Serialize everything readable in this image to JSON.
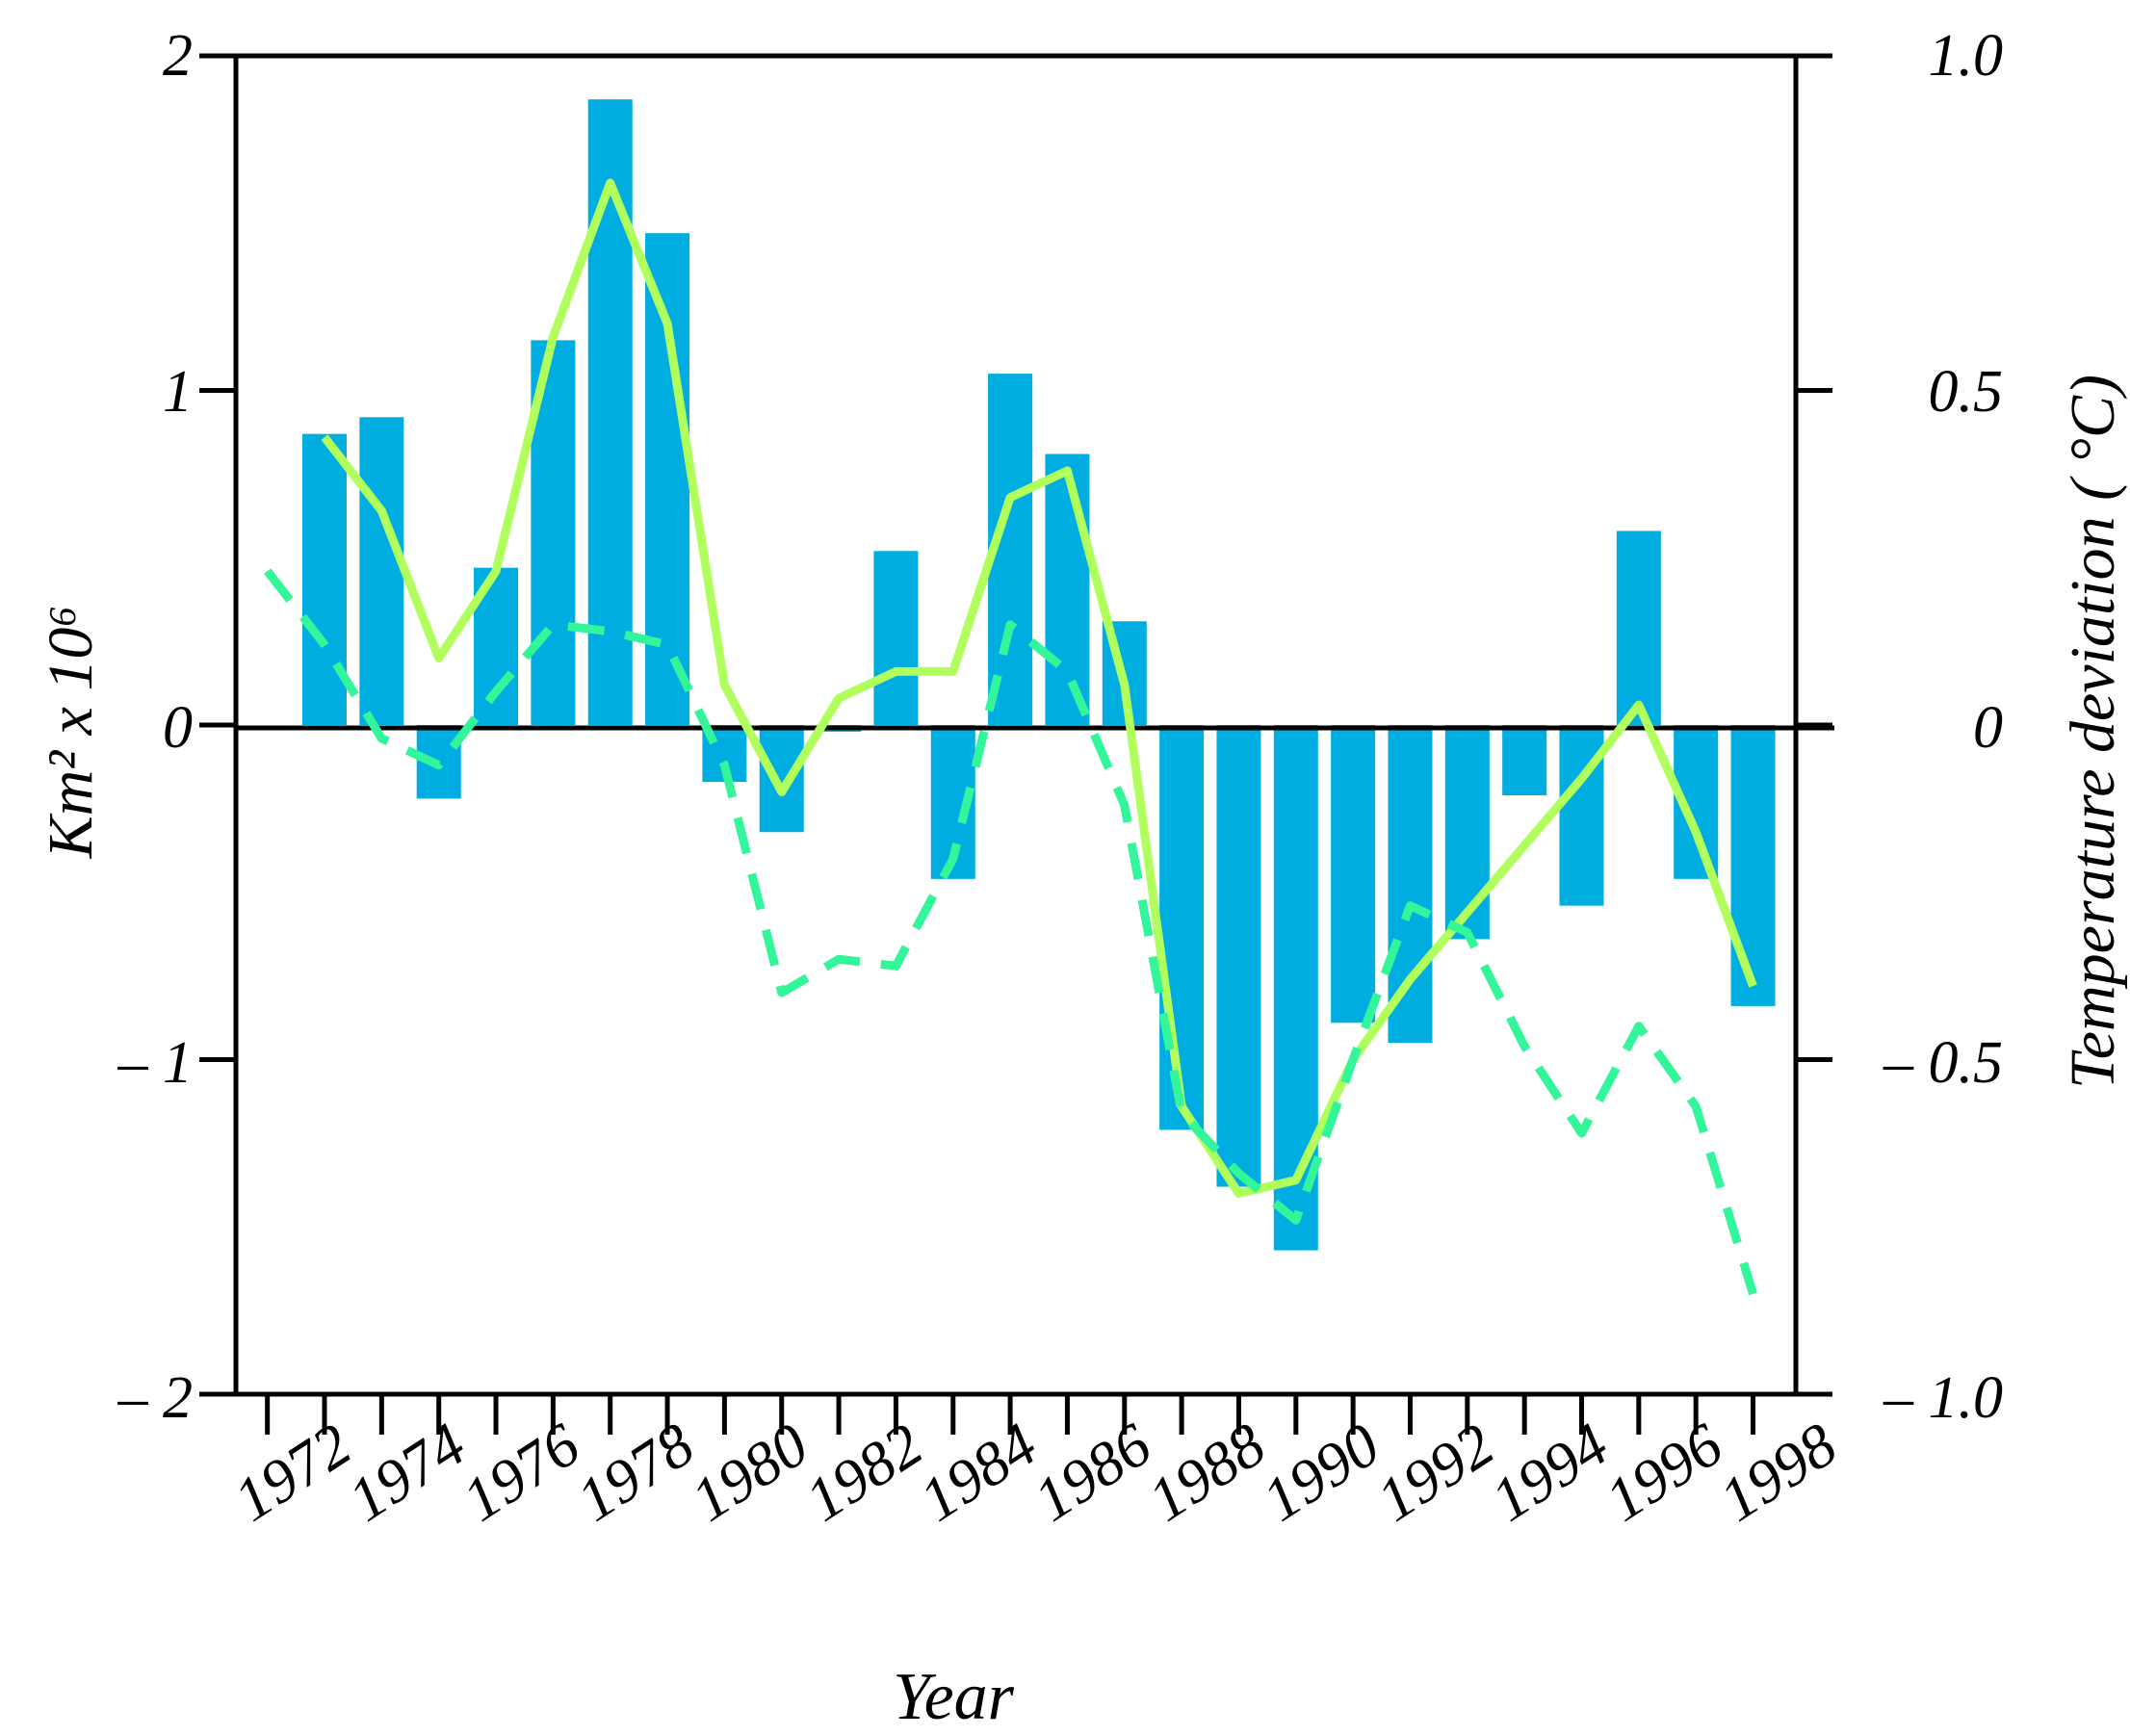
{
  "chart_data": {
    "type": "bar",
    "xlabel": "Year",
    "ylabel": "Km² x 10⁶",
    "y2label": "Temperature deviation ( °C)",
    "ylim": [
      -2,
      2
    ],
    "y2lim": [
      -1.0,
      1.0
    ],
    "y_ticks": [
      "2",
      "1",
      "0",
      "– 1",
      "– 2"
    ],
    "y2_ticks": [
      "1.0",
      "0.5",
      "0",
      "– 0.5",
      "– 1.0"
    ],
    "x_tick_labels": [
      "1972",
      "1974",
      "1976",
      "1978",
      "1980",
      "1982",
      "1984",
      "1986",
      "1988",
      "1990",
      "1992",
      "1994",
      "1996",
      "1998"
    ],
    "bars": {
      "years": [
        1972,
        1973,
        1974,
        1975,
        1976,
        1977,
        1978,
        1979,
        1980,
        1981,
        1982,
        1983,
        1984,
        1985,
        1986,
        1987,
        1988,
        1989,
        1990,
        1991,
        1992,
        1993,
        1994,
        1995,
        1996,
        1997
      ],
      "values": [
        0.87,
        0.92,
        -0.22,
        0.47,
        1.15,
        1.87,
        1.47,
        -0.17,
        -0.32,
        -0.02,
        0.52,
        -0.46,
        1.05,
        0.81,
        0.31,
        -1.21,
        -1.38,
        -1.57,
        -0.89,
        -0.95,
        -0.64,
        -0.21,
        -0.54,
        0.58,
        -0.46,
        -0.84
      ],
      "color": "#00ADE0"
    },
    "series": [
      {
        "style": "solid",
        "color": "#B0FF5C",
        "axis": "right",
        "x": [
          1972,
          1973,
          1974,
          1975,
          1976,
          1977,
          1978,
          1979,
          1980,
          1981,
          1982,
          1983,
          1984,
          1985,
          1986,
          1987,
          1988,
          1989,
          1990,
          1991,
          1992,
          1993,
          1994,
          1995,
          1996,
          1997
        ],
        "values": [
          0.43,
          0.32,
          0.1,
          0.23,
          0.58,
          0.81,
          0.6,
          0.06,
          -0.1,
          0.04,
          0.08,
          0.08,
          0.34,
          0.38,
          0.06,
          -0.57,
          -0.7,
          -0.68,
          -0.5,
          -0.38,
          -0.28,
          -0.18,
          -0.08,
          0.03,
          -0.16,
          -0.39
        ]
      },
      {
        "style": "dashed",
        "color": "#33F59A",
        "axis": "right",
        "x": [
          1971,
          1972,
          1973,
          1974,
          1975,
          1976,
          1977,
          1978,
          1979,
          1980,
          1981,
          1982,
          1983,
          1984,
          1985,
          1986,
          1987,
          1988,
          1989,
          1990,
          1991,
          1992,
          1993,
          1994,
          1995,
          1996,
          1997
        ],
        "values": [
          0.23,
          0.12,
          -0.02,
          -0.06,
          0.05,
          0.15,
          0.14,
          0.12,
          -0.06,
          -0.4,
          -0.35,
          -0.36,
          -0.2,
          0.15,
          0.08,
          -0.12,
          -0.58,
          -0.67,
          -0.74,
          -0.5,
          -0.27,
          -0.31,
          -0.48,
          -0.61,
          -0.45,
          -0.57,
          -0.85
        ]
      }
    ]
  }
}
